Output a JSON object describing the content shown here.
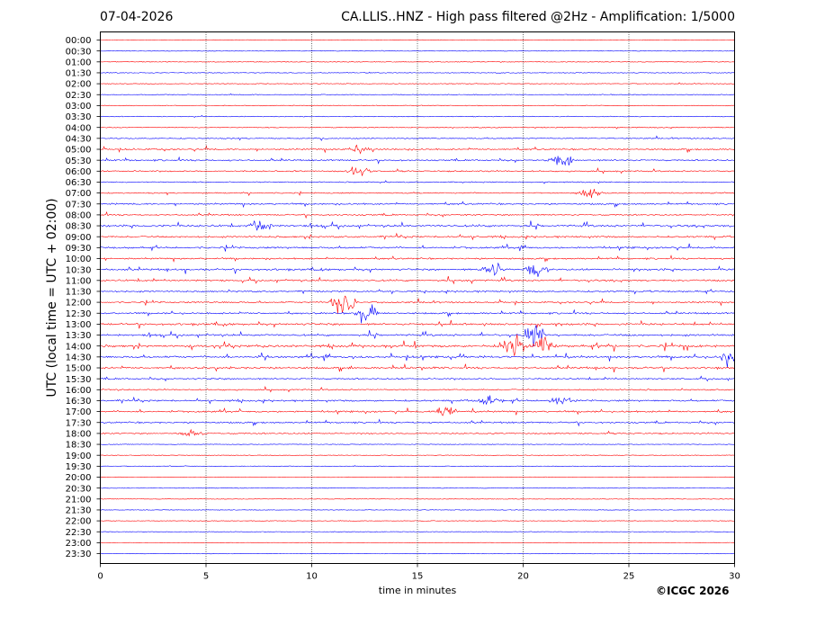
{
  "header": {
    "date": "07-04-2026",
    "title": "CA.LLIS..HNZ - High pass filtered @2Hz - Amplification: 1/5000"
  },
  "footer": {
    "copyright": "©ICGC 2026"
  },
  "chart_data": {
    "type": "seismogram",
    "xlabel": "time in minutes",
    "ylabel": "UTC (local time = UTC + 02:00)",
    "xlim": [
      0,
      30
    ],
    "xticks": [
      0,
      5,
      10,
      15,
      20,
      25,
      30
    ],
    "grid": "vertical dotted lines at 5-minute intervals",
    "colors": {
      "trace_a": "#ff0000",
      "trace_b": "#0000ff"
    },
    "rows": [
      "00:00",
      "00:30",
      "01:00",
      "01:30",
      "02:00",
      "02:30",
      "03:00",
      "03:30",
      "04:00",
      "04:30",
      "05:00",
      "05:30",
      "06:00",
      "06:30",
      "07:00",
      "07:30",
      "08:00",
      "08:30",
      "09:00",
      "09:30",
      "10:00",
      "10:30",
      "11:00",
      "11:30",
      "12:00",
      "12:30",
      "13:00",
      "13:30",
      "14:00",
      "14:30",
      "15:00",
      "15:30",
      "16:00",
      "16:30",
      "17:00",
      "17:30",
      "18:00",
      "18:30",
      "19:00",
      "19:30",
      "20:00",
      "20:30",
      "21:00",
      "21:30",
      "22:00",
      "22:30",
      "23:00",
      "23:30"
    ],
    "activity": [
      0.1,
      0.1,
      0.15,
      0.15,
      0.15,
      0.15,
      0.2,
      0.2,
      0.3,
      0.35,
      0.6,
      0.6,
      0.5,
      0.35,
      0.4,
      0.6,
      0.55,
      0.9,
      0.7,
      0.75,
      0.6,
      0.8,
      0.75,
      0.6,
      0.6,
      0.65,
      0.85,
      0.85,
      1.0,
      0.9,
      0.8,
      0.6,
      0.5,
      0.7,
      0.7,
      0.6,
      0.5,
      0.05,
      0.1,
      0.1,
      0.05,
      0.05,
      0.05,
      0.05,
      0.05,
      0.05,
      0.05,
      0.05
    ],
    "events": [
      {
        "row": "05:00",
        "minute": 12.2,
        "amp": 1.4
      },
      {
        "row": "05:30",
        "minute": 21.8,
        "amp": 2.2
      },
      {
        "row": "06:00",
        "minute": 12.2,
        "amp": 1.5
      },
      {
        "row": "07:00",
        "minute": 23.2,
        "amp": 1.3
      },
      {
        "row": "08:30",
        "minute": 7.5,
        "amp": 1.3
      },
      {
        "row": "10:30",
        "minute": 18.6,
        "amp": 2.4
      },
      {
        "row": "10:30",
        "minute": 20.6,
        "amp": 1.8
      },
      {
        "row": "12:00",
        "minute": 11.5,
        "amp": 6.0
      },
      {
        "row": "12:30",
        "minute": 12.6,
        "amp": 3.5
      },
      {
        "row": "13:30",
        "minute": 20.5,
        "amp": 3.0
      },
      {
        "row": "14:00",
        "minute": 19.6,
        "amp": 2.8
      },
      {
        "row": "14:00",
        "minute": 21.0,
        "amp": 2.0
      },
      {
        "row": "14:30",
        "minute": 29.9,
        "amp": 2.0
      },
      {
        "row": "16:30",
        "minute": 18.3,
        "amp": 1.3
      },
      {
        "row": "16:30",
        "minute": 21.8,
        "amp": 1.2
      },
      {
        "row": "17:00",
        "minute": 16.3,
        "amp": 1.6
      },
      {
        "row": "18:00",
        "minute": 4.3,
        "amp": 1.3
      }
    ]
  }
}
